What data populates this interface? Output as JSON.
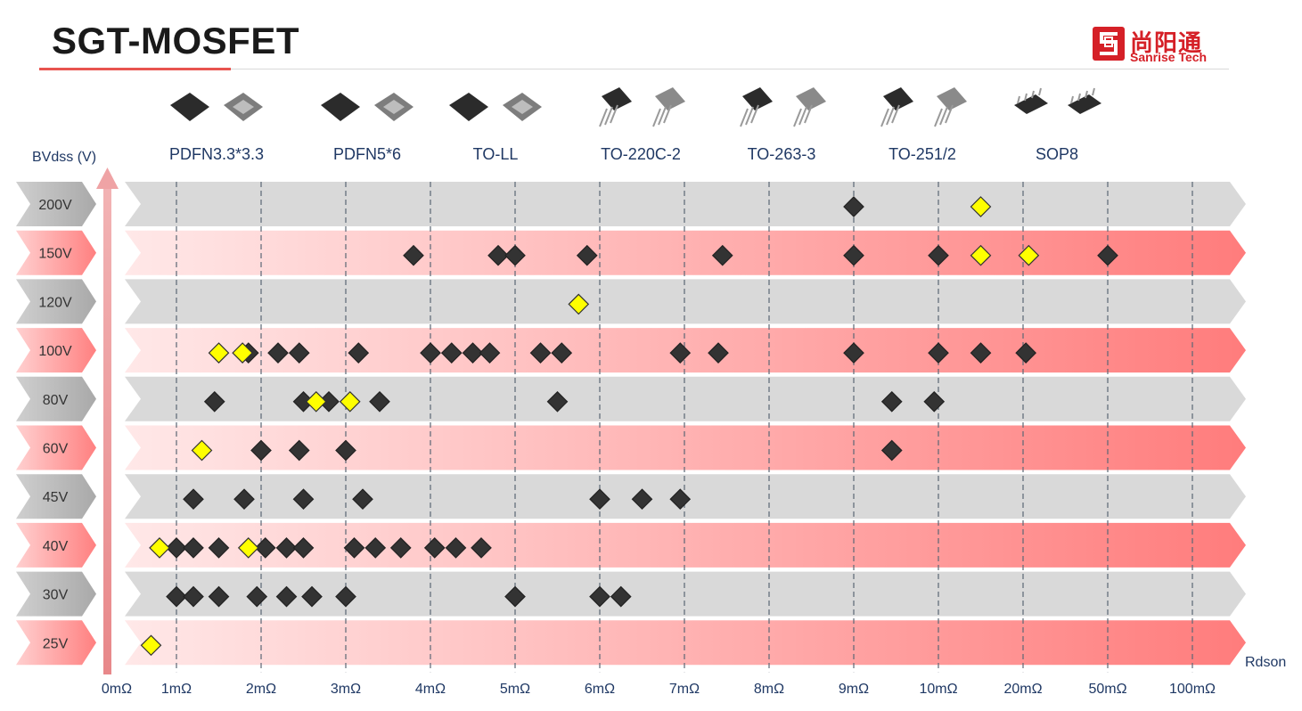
{
  "title": "SGT-MOSFET",
  "logo": {
    "cn": "尚阳通",
    "en": "Sanrise Tech"
  },
  "chart_data": {
    "type": "scatter",
    "xlabel": "Rdson",
    "ylabel": "BVdss (V)",
    "x_ticks": [
      "0mΩ",
      "1mΩ",
      "2mΩ",
      "3mΩ",
      "4mΩ",
      "5mΩ",
      "6mΩ",
      "7mΩ",
      "8mΩ",
      "9mΩ",
      "10mΩ",
      "20mΩ",
      "50mΩ",
      "100mΩ"
    ],
    "y_categories": [
      "25V",
      "30V",
      "40V",
      "45V",
      "60V",
      "80V",
      "100V",
      "120V",
      "150V",
      "200V"
    ],
    "packages": [
      "PDFN3.3*3.3",
      "PDFN5*6",
      "TO-LL",
      "TO-220C-2",
      "TO-263-3",
      "TO-251/2",
      "SOP8"
    ],
    "series": [
      {
        "marker": "black-diamond",
        "points": [
          {
            "y": "200V",
            "x": 9.0
          },
          {
            "y": "150V",
            "x": 3.8
          },
          {
            "y": "150V",
            "x": 4.8
          },
          {
            "y": "150V",
            "x": 5.0
          },
          {
            "y": "150V",
            "x": 5.85
          },
          {
            "y": "150V",
            "x": 7.45
          },
          {
            "y": "150V",
            "x": 9.0
          },
          {
            "y": "150V",
            "x": 10.2
          },
          {
            "y": "150V",
            "x": "50mΩ+"
          },
          {
            "y": "100V",
            "x": 1.85
          },
          {
            "y": "100V",
            "x": 2.2
          },
          {
            "y": "100V",
            "x": 2.45
          },
          {
            "y": "100V",
            "x": 3.15
          },
          {
            "y": "100V",
            "x": 4.0
          },
          {
            "y": "100V",
            "x": 4.25
          },
          {
            "y": "100V",
            "x": 4.5
          },
          {
            "y": "100V",
            "x": 4.7
          },
          {
            "y": "100V",
            "x": 5.3
          },
          {
            "y": "100V",
            "x": 5.55
          },
          {
            "y": "100V",
            "x": 6.95
          },
          {
            "y": "100V",
            "x": 7.4
          },
          {
            "y": "100V",
            "x": 9.0
          },
          {
            "y": "100V",
            "x": 10.2
          },
          {
            "y": "100V",
            "x": "~15mΩ"
          },
          {
            "y": "100V",
            "x": "~21mΩ"
          },
          {
            "y": "80V",
            "x": 1.45
          },
          {
            "y": "80V",
            "x": 2.5
          },
          {
            "y": "80V",
            "x": 2.8
          },
          {
            "y": "80V",
            "x": 3.4
          },
          {
            "y": "80V",
            "x": 5.5
          },
          {
            "y": "80V",
            "x": 9.45
          },
          {
            "y": "80V",
            "x": 9.95
          },
          {
            "y": "60V",
            "x": 2.0
          },
          {
            "y": "60V",
            "x": 2.45
          },
          {
            "y": "60V",
            "x": 3.0
          },
          {
            "y": "60V",
            "x": 9.45
          },
          {
            "y": "45V",
            "x": 1.2
          },
          {
            "y": "45V",
            "x": 1.8
          },
          {
            "y": "45V",
            "x": 2.5
          },
          {
            "y": "45V",
            "x": 3.2
          },
          {
            "y": "45V",
            "x": 6.0
          },
          {
            "y": "45V",
            "x": 6.5
          },
          {
            "y": "45V",
            "x": 6.95
          },
          {
            "y": "40V",
            "x": 1.0
          },
          {
            "y": "40V",
            "x": 1.2
          },
          {
            "y": "40V",
            "x": 1.5
          },
          {
            "y": "40V",
            "x": 2.05
          },
          {
            "y": "40V",
            "x": 2.3
          },
          {
            "y": "40V",
            "x": 2.5
          },
          {
            "y": "40V",
            "x": 3.1
          },
          {
            "y": "40V",
            "x": 3.35
          },
          {
            "y": "40V",
            "x": 3.65
          },
          {
            "y": "40V",
            "x": 4.05
          },
          {
            "y": "40V",
            "x": 4.3
          },
          {
            "y": "40V",
            "x": 4.6
          },
          {
            "y": "30V",
            "x": 1.0
          },
          {
            "y": "30V",
            "x": 1.2
          },
          {
            "y": "30V",
            "x": 1.5
          },
          {
            "y": "30V",
            "x": 1.95
          },
          {
            "y": "30V",
            "x": 2.3
          },
          {
            "y": "30V",
            "x": 2.6
          },
          {
            "y": "30V",
            "x": 3.0
          },
          {
            "y": "30V",
            "x": 5.0
          },
          {
            "y": "30V",
            "x": 6.0
          },
          {
            "y": "30V",
            "x": 6.25
          }
        ]
      },
      {
        "marker": "yellow-diamond",
        "points": [
          {
            "y": "200V",
            "x": "~15mΩ"
          },
          {
            "y": "150V",
            "x": "~15mΩ"
          },
          {
            "y": "150V",
            "x": "~22mΩ"
          },
          {
            "y": "120V",
            "x": 5.75
          },
          {
            "y": "100V",
            "x": 1.5
          },
          {
            "y": "100V",
            "x": 1.78
          },
          {
            "y": "80V",
            "x": 2.65
          },
          {
            "y": "80V",
            "x": 3.05
          },
          {
            "y": "60V",
            "x": 1.3
          },
          {
            "y": "40V",
            "x": 0.8
          },
          {
            "y": "40V",
            "x": 1.85
          },
          {
            "y": "25V",
            "x": 0.7
          }
        ]
      }
    ],
    "colors": {
      "band_gray": "#d9d9d9",
      "band_red_end": "#ff7b7b",
      "band_red_start": "#ffe5e5",
      "label_gray": "#a6a6a6",
      "label_red": "#ff8a8a",
      "diamond_black": "#333333",
      "diamond_yellow": "#ffff00",
      "axis_arrow": "#e8888a"
    }
  }
}
